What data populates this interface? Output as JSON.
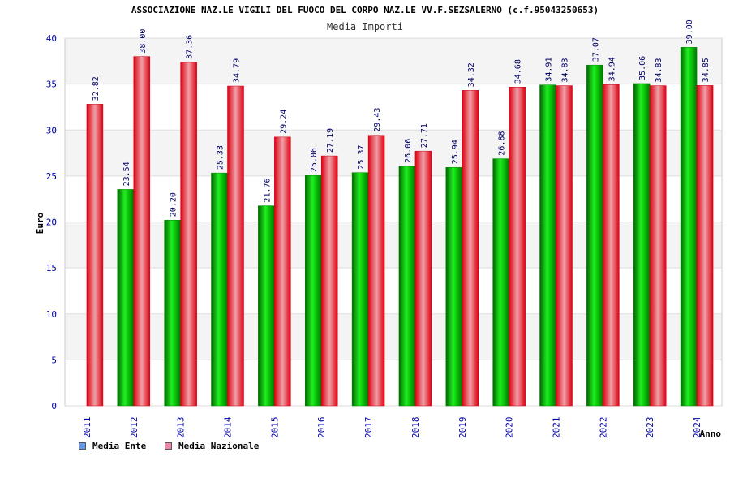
{
  "chart_data": {
    "type": "bar",
    "title": "ASSOCIAZIONE NAZ.LE VIGILI DEL FUOCO DEL CORPO NAZ.LE VV.F.SEZSALERNO (c.f.95043250653)",
    "subtitle": "Media Importi",
    "xlabel": "Anno",
    "ylabel": "Euro",
    "ylim": [
      0,
      40
    ],
    "yticks": [
      0,
      5,
      10,
      15,
      20,
      25,
      30,
      35,
      40
    ],
    "grid": true,
    "legend_position": "bottom-left",
    "categories": [
      "2011",
      "2012",
      "2013",
      "2014",
      "2015",
      "2016",
      "2017",
      "2018",
      "2019",
      "2020",
      "2021",
      "2022",
      "2023",
      "2024"
    ],
    "series": [
      {
        "name": "Media Ente",
        "legend_color": "#6699ee",
        "bar_color": "#00cc00",
        "values": [
          null,
          23.54,
          20.2,
          25.33,
          21.76,
          25.06,
          25.37,
          26.06,
          25.94,
          26.88,
          34.91,
          37.07,
          35.06,
          39.0
        ],
        "labels": [
          "",
          "23.54",
          "20.20",
          "25.33",
          "21.76",
          "25.06",
          "25.37",
          "26.06",
          "25.94",
          "26.88",
          "34.91",
          "37.07",
          "35.06",
          "39.00"
        ]
      },
      {
        "name": "Media Nazionale",
        "legend_color": "#ee88aa",
        "bar_color": "#ee1122",
        "values": [
          32.82,
          38.0,
          37.36,
          34.79,
          29.24,
          27.19,
          29.43,
          27.71,
          34.32,
          34.68,
          34.83,
          34.94,
          34.83,
          34.85
        ],
        "labels": [
          "32.82",
          "38.00",
          "37.36",
          "34.79",
          "29.24",
          "27.19",
          "29.43",
          "27.71",
          "34.32",
          "34.68",
          "34.83",
          "34.94",
          "34.83",
          "34.85"
        ]
      }
    ]
  }
}
